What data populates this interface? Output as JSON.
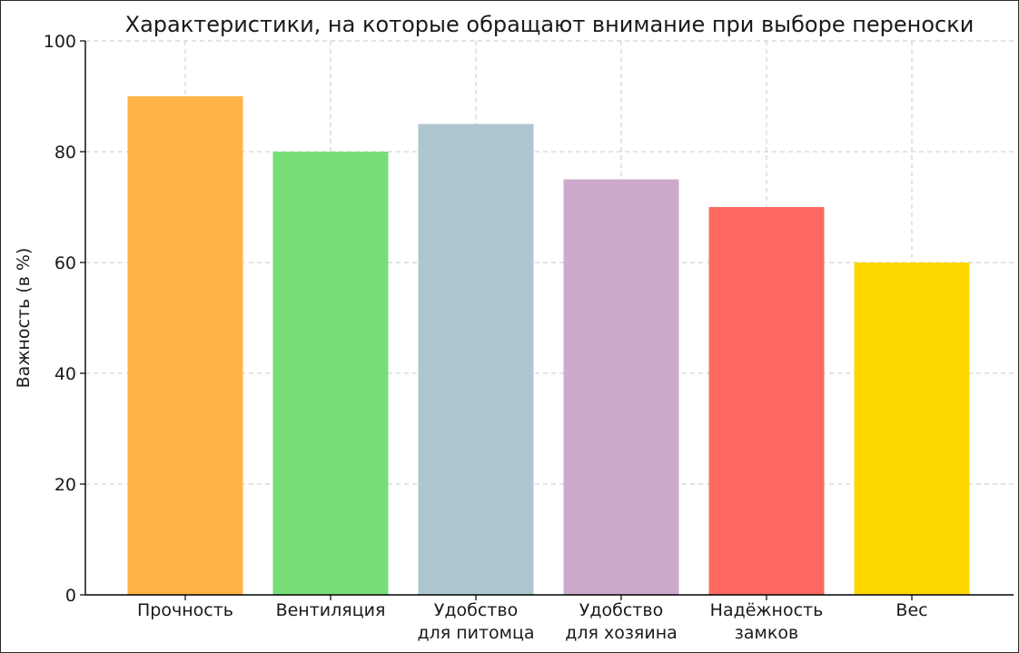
{
  "chart_data": {
    "type": "bar",
    "title": "Характеристики, на которые обращают внимание при выборе переноски",
    "xlabel": "",
    "ylabel": "Важность (в %)",
    "ylim": [
      0,
      100
    ],
    "yticks": [
      0,
      20,
      40,
      60,
      80,
      100
    ],
    "grid": true,
    "categories": [
      [
        "Прочность"
      ],
      [
        "Вентиляция"
      ],
      [
        "Удобство",
        "для питомца"
      ],
      [
        "Удобство",
        "для хозяина"
      ],
      [
        "Надёжность",
        "замков"
      ],
      [
        "Вес"
      ]
    ],
    "values": [
      90,
      80,
      85,
      75,
      70,
      60
    ],
    "colors": [
      "#FFB347",
      "#77DD77",
      "#AEC6CF",
      "#CBAACB",
      "#FF6961",
      "#FFD700"
    ]
  }
}
